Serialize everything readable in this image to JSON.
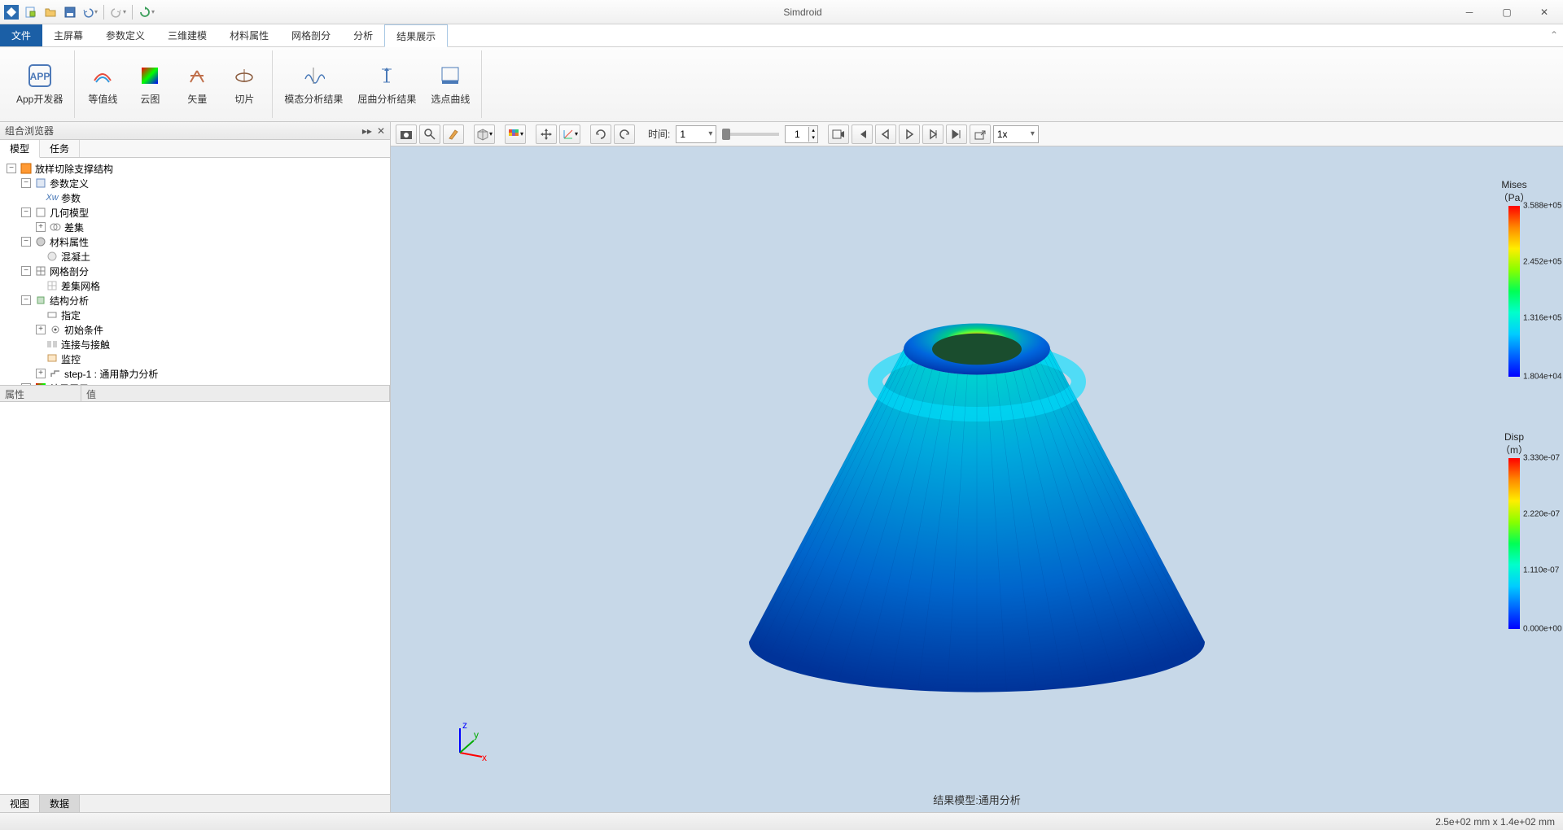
{
  "app": {
    "title": "Simdroid"
  },
  "qat": [
    "logo",
    "new",
    "open",
    "save",
    "undo",
    "redo",
    "refresh"
  ],
  "menus": {
    "file": "文件",
    "items": [
      "主屏幕",
      "参数定义",
      "三维建模",
      "材料属性",
      "网格剖分",
      "分析",
      "结果展示"
    ],
    "active": 6
  },
  "ribbon": {
    "groups": [
      {
        "buttons": [
          {
            "id": "app-dev",
            "label": "App开发器",
            "color": "#4d79b8"
          }
        ]
      },
      {
        "buttons": [
          {
            "id": "contour",
            "label": "等值线"
          },
          {
            "id": "cloud",
            "label": "云图"
          },
          {
            "id": "vector",
            "label": "矢量"
          },
          {
            "id": "slice",
            "label": "切片"
          }
        ]
      },
      {
        "buttons": [
          {
            "id": "modal",
            "label": "模态分析结果"
          },
          {
            "id": "buckle",
            "label": "屈曲分析结果"
          },
          {
            "id": "curve",
            "label": "选点曲线"
          }
        ]
      }
    ]
  },
  "browser": {
    "title": "组合浏览器",
    "tabs": [
      "模型",
      "任务"
    ],
    "activeTab": 0,
    "tree": [
      {
        "d": 0,
        "e": "-",
        "i": "model",
        "t": "放样切除支撑结构"
      },
      {
        "d": 1,
        "e": "-",
        "i": "param",
        "t": "参数定义"
      },
      {
        "d": 2,
        "e": "",
        "i": "xw",
        "t": "参数"
      },
      {
        "d": 1,
        "e": "-",
        "i": "geom",
        "t": "几何模型"
      },
      {
        "d": 2,
        "e": "+",
        "i": "diff",
        "t": "差集"
      },
      {
        "d": 1,
        "e": "-",
        "i": "mat",
        "t": "材料属性"
      },
      {
        "d": 2,
        "e": "",
        "i": "conc",
        "t": "混凝土"
      },
      {
        "d": 1,
        "e": "-",
        "i": "mesh",
        "t": "网格剖分"
      },
      {
        "d": 2,
        "e": "",
        "i": "meshg",
        "t": "差集网格"
      },
      {
        "d": 1,
        "e": "-",
        "i": "struct",
        "t": "结构分析"
      },
      {
        "d": 2,
        "e": "",
        "i": "assign",
        "t": "指定"
      },
      {
        "d": 2,
        "e": "+",
        "i": "init",
        "t": "初始条件"
      },
      {
        "d": 2,
        "e": "",
        "i": "contact",
        "t": "连接与接触"
      },
      {
        "d": 2,
        "e": "",
        "i": "monitor",
        "t": "监控"
      },
      {
        "d": 2,
        "e": "+",
        "i": "step",
        "t": "step-1 : 通用静力分析"
      },
      {
        "d": 1,
        "e": "+",
        "i": "result",
        "t": "结果展示"
      }
    ],
    "propCols": [
      "属性",
      "值"
    ]
  },
  "viewtb": {
    "timeLabel": "时间:",
    "timeValue": "1",
    "spinValue": "1",
    "speedValue": "1x"
  },
  "canvas": {
    "modelLabel": "结果模型:通用分析",
    "legendStops": [
      "#ff0000",
      "#ff8800",
      "#ffee00",
      "#88ff00",
      "#00ff55",
      "#00ffcc",
      "#00ccff",
      "#0066ff",
      "#0000ff"
    ],
    "legend1": {
      "title": "Mises",
      "unit": "（Pa）",
      "max": "3.588e+05",
      "v3": "2.452e+05",
      "v2": "1.316e+05",
      "min": "1.804e+04"
    },
    "legend2": {
      "title": "Disp",
      "unit": "（m）",
      "max": "3.330e-07",
      "v3": "2.220e-07",
      "v2": "1.110e-07",
      "min": "0.000e+00"
    },
    "bg": "#c7d8e8"
  },
  "status": {
    "text": "2.5e+02 mm x 1.4e+02 mm"
  },
  "bottomTabs": [
    "视图",
    "数据"
  ],
  "bottomActive": 1
}
